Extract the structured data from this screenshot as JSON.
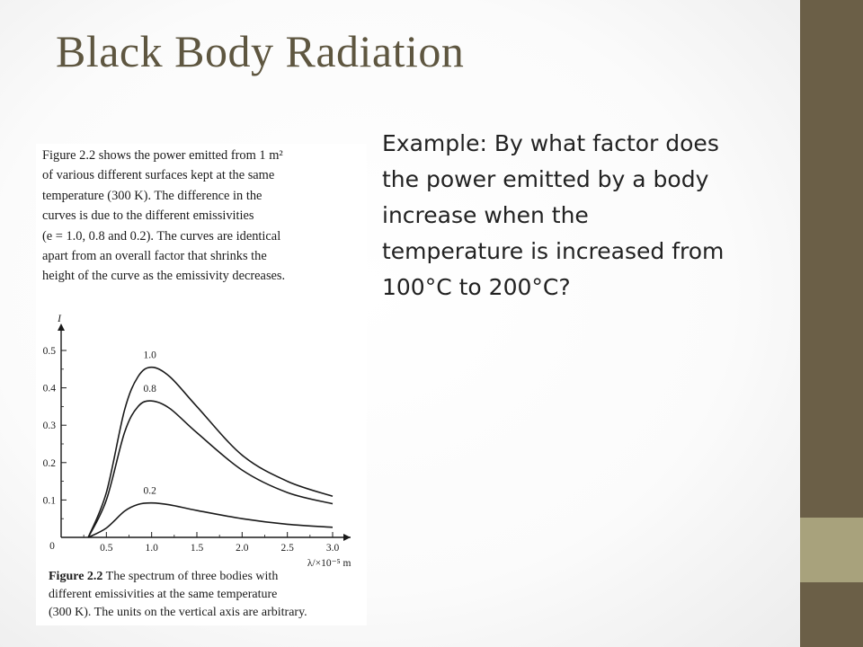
{
  "slide": {
    "title": "Black Body Radiation",
    "question_lines": [
      "Example: By what factor does",
      "the power emitted by a body",
      "increase when the",
      "temperature is increased from",
      "100°C to 200°C?"
    ]
  },
  "figure": {
    "description_lines": [
      "Figure 2.2 shows the power emitted from 1 m²",
      "of various different surfaces kept at the same",
      "temperature (300 K). The difference in the",
      "curves is due to the different emissivities",
      "(e = 1.0, 0.8 and 0.2). The curves are identical",
      "apart from an overall factor that shrinks the",
      "height of the curve as the emissivity decreases."
    ],
    "caption_label": "Figure 2.2",
    "caption_lines": [
      " The spectrum of three bodies with",
      "different emissivities at the same temperature",
      "(300 K). The units on the vertical axis are arbitrary."
    ]
  },
  "chart_data": {
    "type": "line",
    "title": "",
    "ylabel": "I",
    "xlabel": "λ/×10⁻⁵ m",
    "xlim": [
      0,
      3.2
    ],
    "ylim": [
      0,
      0.52
    ],
    "x_ticks": [
      0.5,
      1.0,
      1.5,
      2.0,
      2.5,
      3.0
    ],
    "x_tick_labels": [
      "0.5",
      "1.0",
      "1.5",
      "2.0",
      "2.5",
      "3.0"
    ],
    "origin_label": "0",
    "y_ticks": [
      0.1,
      0.2,
      0.3,
      0.4,
      0.5
    ],
    "y_tick_labels": [
      "0.1",
      "0.2",
      "0.3",
      "0.4",
      "0.5"
    ],
    "grid": false,
    "series": [
      {
        "name": "1.0",
        "x": [
          0.3,
          0.5,
          0.7,
          0.85,
          1.0,
          1.2,
          1.5,
          2.0,
          2.5,
          3.0
        ],
        "values": [
          0.0,
          0.12,
          0.34,
          0.43,
          0.455,
          0.43,
          0.35,
          0.22,
          0.15,
          0.11
        ]
      },
      {
        "name": "0.8",
        "x": [
          0.3,
          0.5,
          0.7,
          0.85,
          1.0,
          1.2,
          1.5,
          2.0,
          2.5,
          3.0
        ],
        "values": [
          0.0,
          0.1,
          0.28,
          0.35,
          0.365,
          0.345,
          0.28,
          0.18,
          0.12,
          0.09
        ]
      },
      {
        "name": "0.2",
        "x": [
          0.3,
          0.5,
          0.7,
          0.85,
          1.0,
          1.2,
          1.5,
          2.0,
          2.5,
          3.0
        ],
        "values": [
          0.0,
          0.025,
          0.07,
          0.088,
          0.092,
          0.087,
          0.072,
          0.05,
          0.035,
          0.027
        ]
      }
    ]
  },
  "colors": {
    "title": "#5e5640",
    "sidebar_dark": "#6b5f47",
    "sidebar_light": "#a8a27c",
    "chart_ink": "#1a1a1a"
  }
}
